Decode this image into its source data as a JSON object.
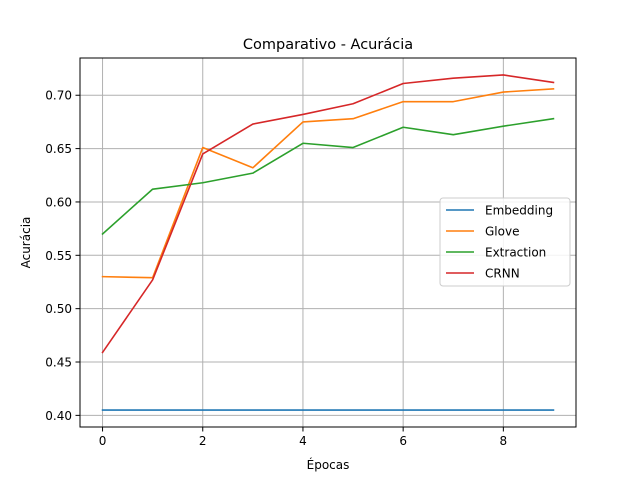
{
  "chart_data": {
    "type": "line",
    "title": "Comparativo - Acurácia",
    "xlabel": "Épocas",
    "ylabel": "Acurácia",
    "xlim": [
      -0.45,
      9.45
    ],
    "ylim": [
      0.3891,
      0.7349
    ],
    "xticks": [
      0,
      2,
      4,
      6,
      8
    ],
    "yticks": [
      0.4,
      0.45,
      0.5,
      0.55,
      0.6,
      0.65,
      0.7
    ],
    "grid": true,
    "legend_position": "center-right",
    "x": [
      0,
      1,
      2,
      3,
      4,
      5,
      6,
      7,
      8,
      9
    ],
    "series": [
      {
        "name": "Embedding",
        "color": "#1f77b4",
        "values": [
          0.405,
          0.405,
          0.405,
          0.405,
          0.405,
          0.405,
          0.405,
          0.405,
          0.405,
          0.405
        ]
      },
      {
        "name": "Glove",
        "color": "#ff7f0e",
        "values": [
          0.53,
          0.529,
          0.651,
          0.632,
          0.675,
          0.678,
          0.694,
          0.694,
          0.703,
          0.706
        ]
      },
      {
        "name": "Extraction",
        "color": "#2ca02c",
        "values": [
          0.57,
          0.612,
          0.618,
          0.627,
          0.655,
          0.651,
          0.67,
          0.663,
          0.671,
          0.678
        ]
      },
      {
        "name": "CRNN",
        "color": "#d62728",
        "values": [
          0.459,
          0.527,
          0.645,
          0.673,
          0.682,
          0.692,
          0.711,
          0.716,
          0.719,
          0.712
        ]
      }
    ]
  }
}
